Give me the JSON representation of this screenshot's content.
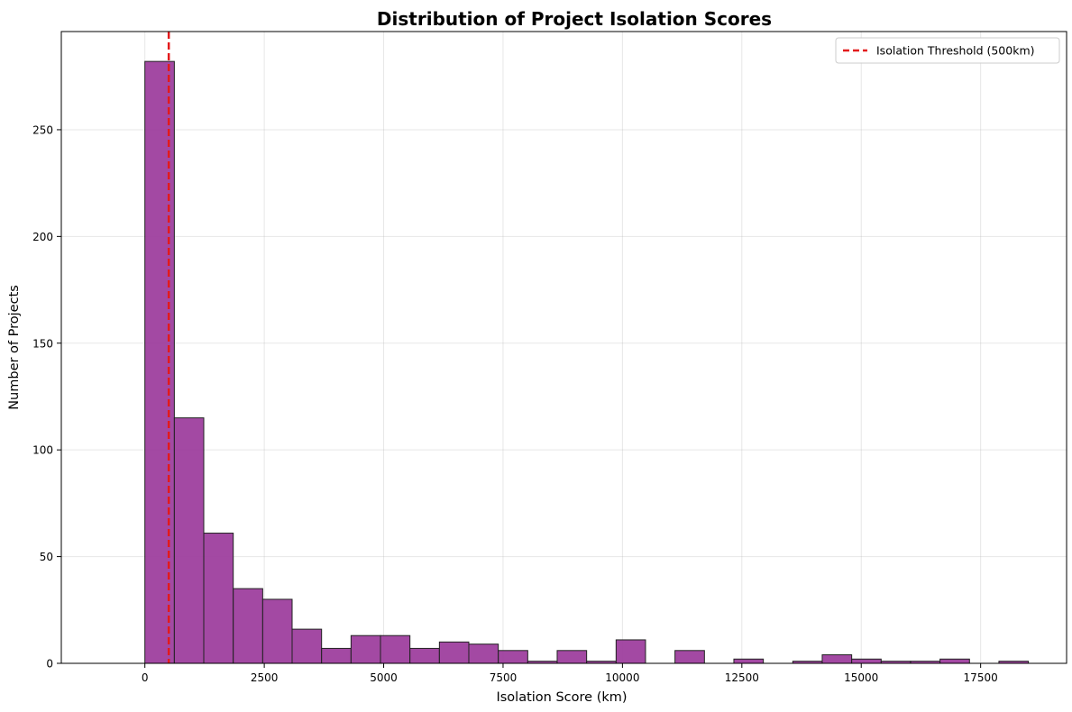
{
  "chart_data": {
    "type": "bar",
    "subtype": "histogram",
    "title": "Distribution of Project Isolation Scores",
    "xlabel": "Isolation Score (km)",
    "ylabel": "Number of Projects",
    "xlim": [
      -1750,
      19300
    ],
    "ylim": [
      0,
      296
    ],
    "x_ticks": [
      0,
      2500,
      5000,
      7500,
      10000,
      12500,
      15000,
      17500
    ],
    "y_ticks": [
      0,
      50,
      100,
      150,
      200,
      250
    ],
    "bin_edges": [
      0,
      617,
      1233,
      1850,
      2467,
      3083,
      3700,
      4317,
      4933,
      5550,
      6167,
      6783,
      7400,
      8017,
      8633,
      9250,
      9867,
      10483,
      11100,
      11717,
      12333,
      12950,
      13567,
      14183,
      14800,
      15417,
      16033,
      16650,
      17267,
      17883,
      18500
    ],
    "counts": [
      282,
      115,
      61,
      35,
      30,
      16,
      7,
      13,
      13,
      7,
      10,
      9,
      6,
      1,
      6,
      1,
      11,
      0,
      6,
      0,
      2,
      0,
      1,
      4,
      2,
      1,
      1,
      2,
      0,
      1
    ],
    "bar_color": "#9b3a9b",
    "bar_edge_color": "#222222",
    "grid": true,
    "threshold": {
      "value": 500,
      "label": "Isolation Threshold (500km)",
      "color": "#e31a1c",
      "style": "dashed"
    },
    "legend_position": "top-right"
  }
}
